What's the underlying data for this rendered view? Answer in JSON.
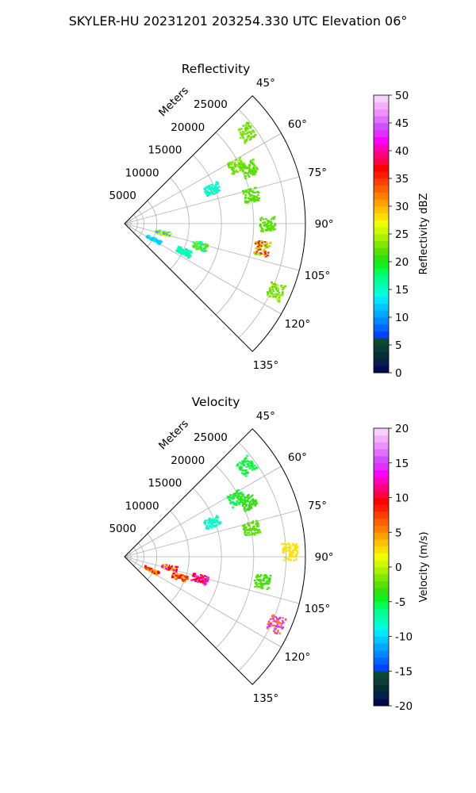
{
  "suptitle": "SKYLER-HU  20231201  203254.330 UTC Elevation 06°",
  "chart_data": [
    {
      "type": "polar-sector",
      "title": "Reflectivity",
      "radial_label": "Meters",
      "radial_ticks": [
        5000,
        10000,
        15000,
        20000,
        25000
      ],
      "r_range": [
        0,
        28000
      ],
      "angle_ticks": [
        "45°",
        "60°",
        "75°",
        "90°",
        "105°",
        "120°",
        "135°"
      ],
      "angle_values": [
        45,
        60,
        75,
        90,
        105,
        120,
        135
      ],
      "grid": true,
      "colorbar": {
        "label": "Reflectivity dBZ",
        "range": [
          0,
          50
        ],
        "ticks": [
          0,
          5,
          10,
          15,
          20,
          25,
          30,
          35,
          40,
          45,
          50
        ],
        "colors": [
          "#000a4e",
          "#05204f",
          "#062e33",
          "#0a3c3c",
          "#0d4a2d",
          "#0044ff",
          "#0066ff",
          "#0088ff",
          "#00a8ff",
          "#00c8ff",
          "#00e8ff",
          "#00ffd8",
          "#00ffb4",
          "#00ff8c",
          "#00ff5a",
          "#10f020",
          "#30e010",
          "#58e000",
          "#80e800",
          "#a8f000",
          "#d0f800",
          "#f0ff00",
          "#ffe000",
          "#ffc000",
          "#ffa000",
          "#ff8000",
          "#ff6000",
          "#ff4000",
          "#ff1c00",
          "#ff0000",
          "#ff0048",
          "#ff0080",
          "#ff00c0",
          "#ff00ff",
          "#e030ff",
          "#d050ff",
          "#e070ff",
          "#ee90ff",
          "#f4b0ff",
          "#f8d0ff"
        ]
      },
      "echo_regions": [
        {
          "az": 53,
          "r": 23500,
          "colors": [
            "#58e000",
            "#80e800"
          ]
        },
        {
          "az": 62,
          "r": 19500,
          "colors": [
            "#58e000",
            "#80e800"
          ]
        },
        {
          "az": 66,
          "r": 21000,
          "colors": [
            "#58e000"
          ]
        },
        {
          "az": 68,
          "r": 14500,
          "colors": [
            "#00ffb4",
            "#00ffd8"
          ]
        },
        {
          "az": 77,
          "r": 20000,
          "colors": [
            "#58e000"
          ]
        },
        {
          "az": 90,
          "r": 22000,
          "colors": [
            "#58e000"
          ]
        },
        {
          "az": 100,
          "r": 21500,
          "colors": [
            "#ff1c00",
            "#80e800",
            "#ffc000"
          ]
        },
        {
          "az": 106,
          "r": 12000,
          "colors": [
            "#00ff8c",
            "#58e000",
            "#80e800",
            "#00ffb4"
          ]
        },
        {
          "az": 115,
          "r": 10000,
          "colors": [
            "#00ff8c",
            "#00ffd8"
          ]
        },
        {
          "az": 114,
          "r": 25500,
          "colors": [
            "#58e000",
            "#a8f000"
          ]
        },
        {
          "az": 103,
          "r": 6000,
          "colors": [
            "#ffe000",
            "#00c8ff"
          ]
        },
        {
          "az": 118,
          "r": 5000,
          "colors": [
            "#00c8ff",
            "#00e8ff"
          ]
        }
      ]
    },
    {
      "type": "polar-sector",
      "title": "Velocity",
      "radial_label": "Meters",
      "radial_ticks": [
        5000,
        10000,
        15000,
        20000,
        25000
      ],
      "r_range": [
        0,
        28000
      ],
      "angle_ticks": [
        "45°",
        "60°",
        "75°",
        "90°",
        "105°",
        "120°",
        "135°"
      ],
      "angle_values": [
        45,
        60,
        75,
        90,
        105,
        120,
        135
      ],
      "grid": true,
      "colorbar": {
        "label": "Velocity (m/s)",
        "range": [
          -20,
          20
        ],
        "ticks": [
          -20,
          -15,
          -10,
          -5,
          0,
          5,
          10,
          15,
          20
        ],
        "colors": [
          "#000a4e",
          "#05204f",
          "#062e33",
          "#0a3c3c",
          "#0d4a2d",
          "#0044ff",
          "#0066ff",
          "#0088ff",
          "#00a8ff",
          "#00c8ff",
          "#00e8ff",
          "#00ffd8",
          "#00ffb4",
          "#00ff8c",
          "#00ff5a",
          "#10f020",
          "#30e010",
          "#58e000",
          "#80e800",
          "#a8f000",
          "#d0f800",
          "#f0ff00",
          "#ffe000",
          "#ffc000",
          "#ffa000",
          "#ff8000",
          "#ff6000",
          "#ff4000",
          "#ff1c00",
          "#ff0000",
          "#ff0048",
          "#ff0080",
          "#ff00c0",
          "#ff00ff",
          "#e030ff",
          "#d050ff",
          "#e070ff",
          "#ee90ff",
          "#f4b0ff",
          "#f8d0ff"
        ]
      },
      "echo_regions": [
        {
          "az": 53,
          "r": 23500,
          "colors": [
            "#00ff5a",
            "#10f020"
          ]
        },
        {
          "az": 62,
          "r": 19500,
          "colors": [
            "#30e010",
            "#00ff5a"
          ]
        },
        {
          "az": 66,
          "r": 21000,
          "colors": [
            "#30e010"
          ]
        },
        {
          "az": 68,
          "r": 14500,
          "colors": [
            "#00ffb4",
            "#00ffd8"
          ]
        },
        {
          "az": 77,
          "r": 20000,
          "colors": [
            "#58e000"
          ]
        },
        {
          "az": 100,
          "r": 21500,
          "colors": [
            "#30e010",
            "#58e000"
          ]
        },
        {
          "az": 106,
          "r": 12000,
          "colors": [
            "#ff00ff",
            "#e030ff",
            "#ff0000",
            "#ff00c0"
          ]
        },
        {
          "az": 110,
          "r": 9000,
          "colors": [
            "#ff4000",
            "#ffc000",
            "#ff0000"
          ]
        },
        {
          "az": 103,
          "r": 7000,
          "colors": [
            "#ff0000",
            "#ffe000",
            "#ff00ff"
          ]
        },
        {
          "az": 116,
          "r": 4500,
          "colors": [
            "#ff0000",
            "#ffa000"
          ]
        },
        {
          "az": 114,
          "r": 25500,
          "colors": [
            "#ff8000",
            "#e030ff"
          ]
        },
        {
          "az": 88,
          "r": 25500,
          "colors": [
            "#ffe000"
          ]
        }
      ]
    }
  ]
}
